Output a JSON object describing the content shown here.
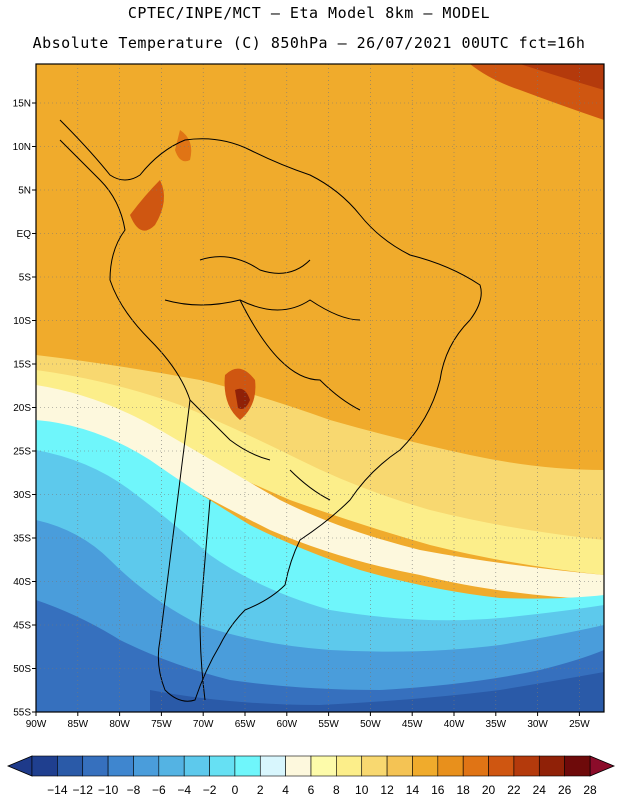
{
  "title": {
    "line1": "CPTEC/INPE/MCT – Eta Model 8km – MODEL",
    "line2": "Absolute Temperature (C) 850hPa – 26/07/2021 00UTC fct=16h"
  },
  "map": {
    "lat_labels": [
      "15N",
      "10N",
      "5N",
      "EQ",
      "5S",
      "10S",
      "15S",
      "20S",
      "25S",
      "30S",
      "35S",
      "40S",
      "45S",
      "50S",
      "55S"
    ],
    "lon_labels": [
      "90W",
      "85W",
      "80W",
      "75W",
      "70W",
      "65W",
      "60W",
      "55W",
      "50W",
      "45W",
      "40W",
      "35W",
      "30W",
      "25W"
    ],
    "gridlines": true
  },
  "colorbar": {
    "ticks": [
      "-14",
      "-12",
      "-10",
      "-8",
      "-6",
      "-4",
      "-2",
      "0",
      "2",
      "4",
      "6",
      "8",
      "10",
      "12",
      "14",
      "16",
      "18",
      "20",
      "22",
      "24",
      "26",
      "28"
    ],
    "colors": [
      "#1f3f8f",
      "#2a5aa8",
      "#3670be",
      "#3f86cf",
      "#4a9ddb",
      "#54b3e3",
      "#5dc9ec",
      "#66e0f3",
      "#6ff6fb",
      "#d8f6fd",
      "#fdf8dd",
      "#fdfbaa",
      "#fcee8a",
      "#f8d870",
      "#f4c354",
      "#f0ab2c",
      "#e8901c",
      "#e07415",
      "#cf5611",
      "#b43a0c",
      "#902107",
      "#6e0a0a"
    ],
    "under_color": "#1e3a8a",
    "over_color": "#8b0c2a"
  }
}
